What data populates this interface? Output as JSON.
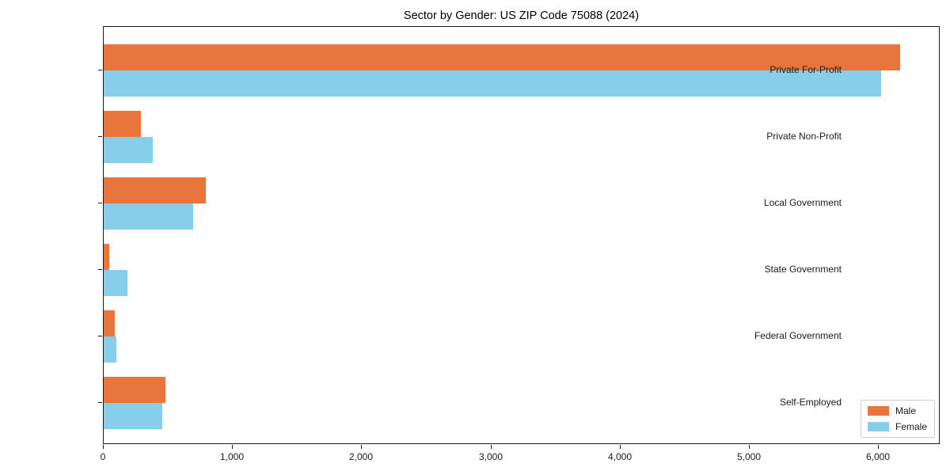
{
  "chart_data": {
    "type": "bar",
    "orientation": "horizontal",
    "title": "Sector by Gender: US ZIP Code 75088 (2024)",
    "categories": [
      "Private For-Profit",
      "Private Non-Profit",
      "Local Government",
      "State Government",
      "Federal Government",
      "Self-Employed"
    ],
    "series": [
      {
        "name": "Male",
        "color": "#E8763C",
        "values": [
          6165,
          290,
          790,
          40,
          85,
          480
        ]
      },
      {
        "name": "Female",
        "color": "#87CEEB",
        "values": [
          6020,
          380,
          695,
          185,
          95,
          455
        ]
      }
    ],
    "xlabel": "",
    "ylabel": "",
    "xlim": [
      0,
      6478
    ],
    "xticks": [
      0,
      1000,
      2000,
      3000,
      4000,
      5000,
      6000
    ],
    "xtick_labels": [
      "0",
      "1,000",
      "2,000",
      "3,000",
      "4,000",
      "5,000",
      "6,000"
    ],
    "legend_position": "lower right",
    "legend_entries": [
      "Male",
      "Female"
    ],
    "grid": false,
    "background": "#ffffff",
    "spine_color": "#1a1a1a"
  }
}
